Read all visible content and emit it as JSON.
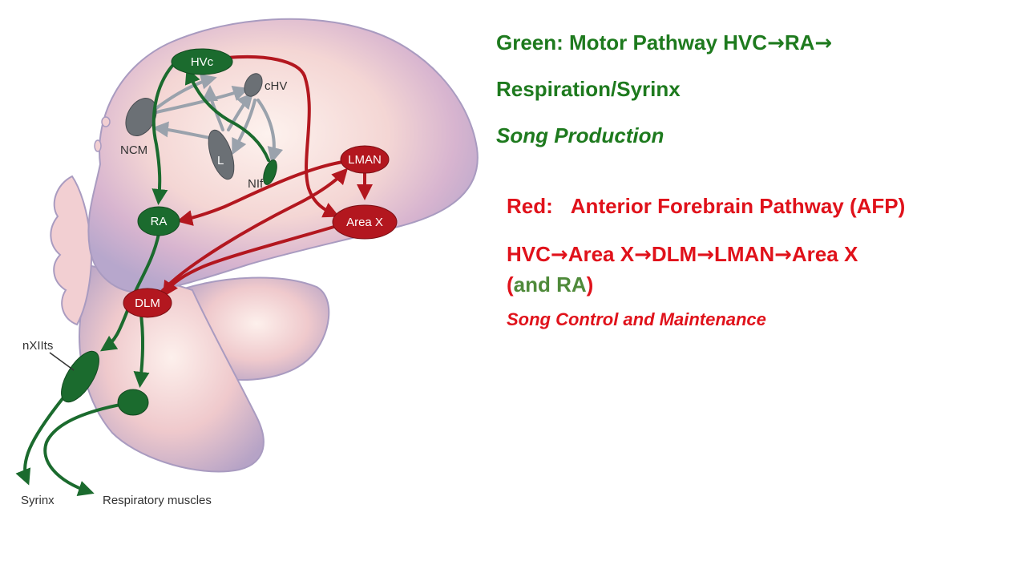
{
  "diagram": {
    "nodes": {
      "hvc": "HVc",
      "chv": "cHV",
      "ncm": "NCM",
      "l": "L",
      "nif": "NIf",
      "lman": "LMAN",
      "ra": "RA",
      "areax": "Area X",
      "dlm": "DLM",
      "nxiits": "nXIIts"
    },
    "outputs": {
      "syrinx": "Syrinx",
      "resp": "Respiratory muscles"
    },
    "colors": {
      "motor_pathway": "#1b6b2e",
      "afp_pathway": "#b3171f",
      "auditory": "#6b7075",
      "auditory_arrows": "#9aa2ac",
      "brain_outer": "#b7a7cc",
      "brain_inner": "#fbe9e4"
    }
  },
  "legend": {
    "green": {
      "line1_a": "Green: Motor Pathway HVC",
      "arrow": "→",
      "line1_b": "RA",
      "line2": "Respiration/Syrinx",
      "line3": "Song Production"
    },
    "red": {
      "line1_a": "Red:",
      "line1_b": "Anterior Forebrain Pathway (AFP)",
      "seq1": "HVC",
      "seq2": "Area X",
      "seq3": "DLM",
      "seq4": "LMAN",
      "seq5": "Area X",
      "paren_open": "(",
      "and_ra": "and RA",
      "paren_close": ")",
      "line4": "Song Control and Maintenance"
    }
  }
}
